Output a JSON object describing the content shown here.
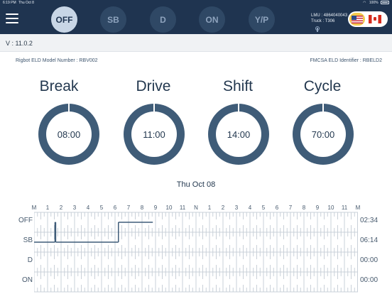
{
  "status_bar": {
    "time": "6:19 PM",
    "date": "Thu Oct 8",
    "battery": "100%"
  },
  "header": {
    "duty_buttons": [
      {
        "label": "OFF",
        "active": true
      },
      {
        "label": "SB",
        "active": false
      },
      {
        "label": "D",
        "active": false
      },
      {
        "label": "ON",
        "active": false
      },
      {
        "label": "Y/P",
        "active": false
      }
    ],
    "lmu": "LMU : 4864040043",
    "truck": "Truck : T306",
    "flags": [
      "us-flag-icon",
      "canada-flag-icon"
    ],
    "icons": [
      "menu-icon",
      "antenna-icon"
    ]
  },
  "version": "V : 11.0.2",
  "eld": {
    "model_number": "Rigbot ELD Model Number : RBV002",
    "fmcsa_identifier": "FMCSA ELD Identifier : RBELD2"
  },
  "clocks": [
    {
      "title": "Break",
      "time": "08:00",
      "remaining_fraction": 1.0
    },
    {
      "title": "Drive",
      "time": "11:00",
      "remaining_fraction": 1.0
    },
    {
      "title": "Shift",
      "time": "14:00",
      "remaining_fraction": 1.0
    },
    {
      "title": "Cycle",
      "time": "70:00",
      "remaining_fraction": 1.0
    }
  ],
  "colors": {
    "header": "#1f3450",
    "gauge": "#3f5c78",
    "active_button": "#c8d6e6",
    "flag_highlight": "#f2c94c"
  },
  "log_date": "Thu Oct 08",
  "graph": {
    "hour_labels": [
      "M",
      "1",
      "2",
      "3",
      "4",
      "5",
      "6",
      "7",
      "8",
      "9",
      "10",
      "11",
      "N",
      "1",
      "2",
      "3",
      "4",
      "5",
      "6",
      "7",
      "8",
      "9",
      "10",
      "11",
      "M"
    ],
    "rows": [
      {
        "label": "OFF",
        "total": "02:34"
      },
      {
        "label": "SB",
        "total": "06:14"
      },
      {
        "label": "D",
        "total": "00:00"
      },
      {
        "label": "ON",
        "total": "00:00"
      }
    ],
    "duty_segments": [
      {
        "status": "SB",
        "start_hour": 0.0,
        "end_hour": 1.55
      },
      {
        "status": "OFF",
        "start_hour": 1.55,
        "end_hour": 1.6
      },
      {
        "status": "SB",
        "start_hour": 1.6,
        "end_hour": 6.25
      },
      {
        "status": "OFF",
        "start_hour": 6.25,
        "end_hour": 8.8
      }
    ]
  }
}
